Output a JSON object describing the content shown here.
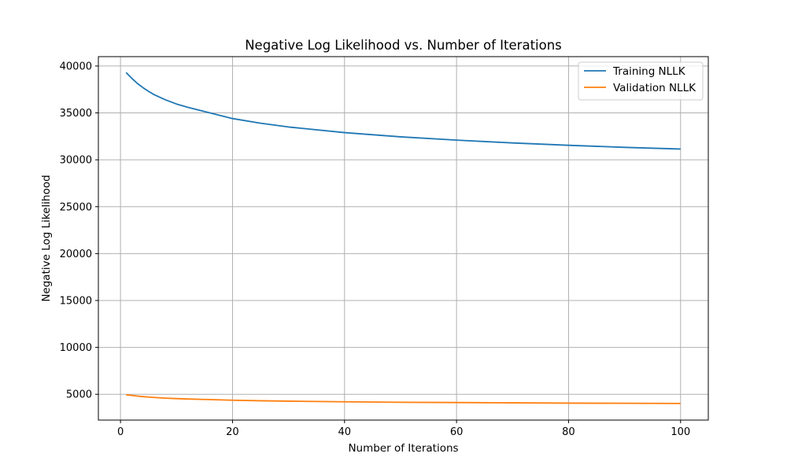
{
  "chart_data": {
    "type": "line",
    "title": "Negative Log Likelihood vs. Number of Iterations",
    "xlabel": "Number of Iterations",
    "ylabel": "Negative Log Likelihood",
    "xlim": [
      -3.95,
      104.95
    ],
    "ylim": [
      2250,
      41000
    ],
    "xticks": [
      0,
      20,
      40,
      60,
      80,
      100
    ],
    "yticks": [
      5000,
      10000,
      15000,
      20000,
      25000,
      30000,
      35000,
      40000
    ],
    "grid": true,
    "legend_position": "top-right",
    "series": [
      {
        "name": "Training NLLK",
        "color": "#1f77b4",
        "x": [
          1,
          2,
          3,
          4,
          5,
          6,
          8,
          10,
          12,
          15,
          20,
          25,
          30,
          40,
          50,
          60,
          70,
          80,
          90,
          100
        ],
        "y": [
          39300,
          38700,
          38150,
          37700,
          37300,
          36950,
          36400,
          35950,
          35600,
          35150,
          34400,
          33900,
          33500,
          32900,
          32450,
          32100,
          31800,
          31550,
          31330,
          31150
        ]
      },
      {
        "name": "Validation NLLK",
        "color": "#ff7f0e",
        "x": [
          1,
          2,
          3,
          4,
          5,
          6,
          8,
          10,
          12,
          15,
          20,
          25,
          30,
          40,
          50,
          60,
          70,
          80,
          90,
          100
        ],
        "y": [
          4950,
          4880,
          4810,
          4750,
          4700,
          4660,
          4590,
          4540,
          4500,
          4450,
          4370,
          4310,
          4270,
          4200,
          4150,
          4120,
          4090,
          4060,
          4040,
          4020
        ]
      }
    ]
  }
}
